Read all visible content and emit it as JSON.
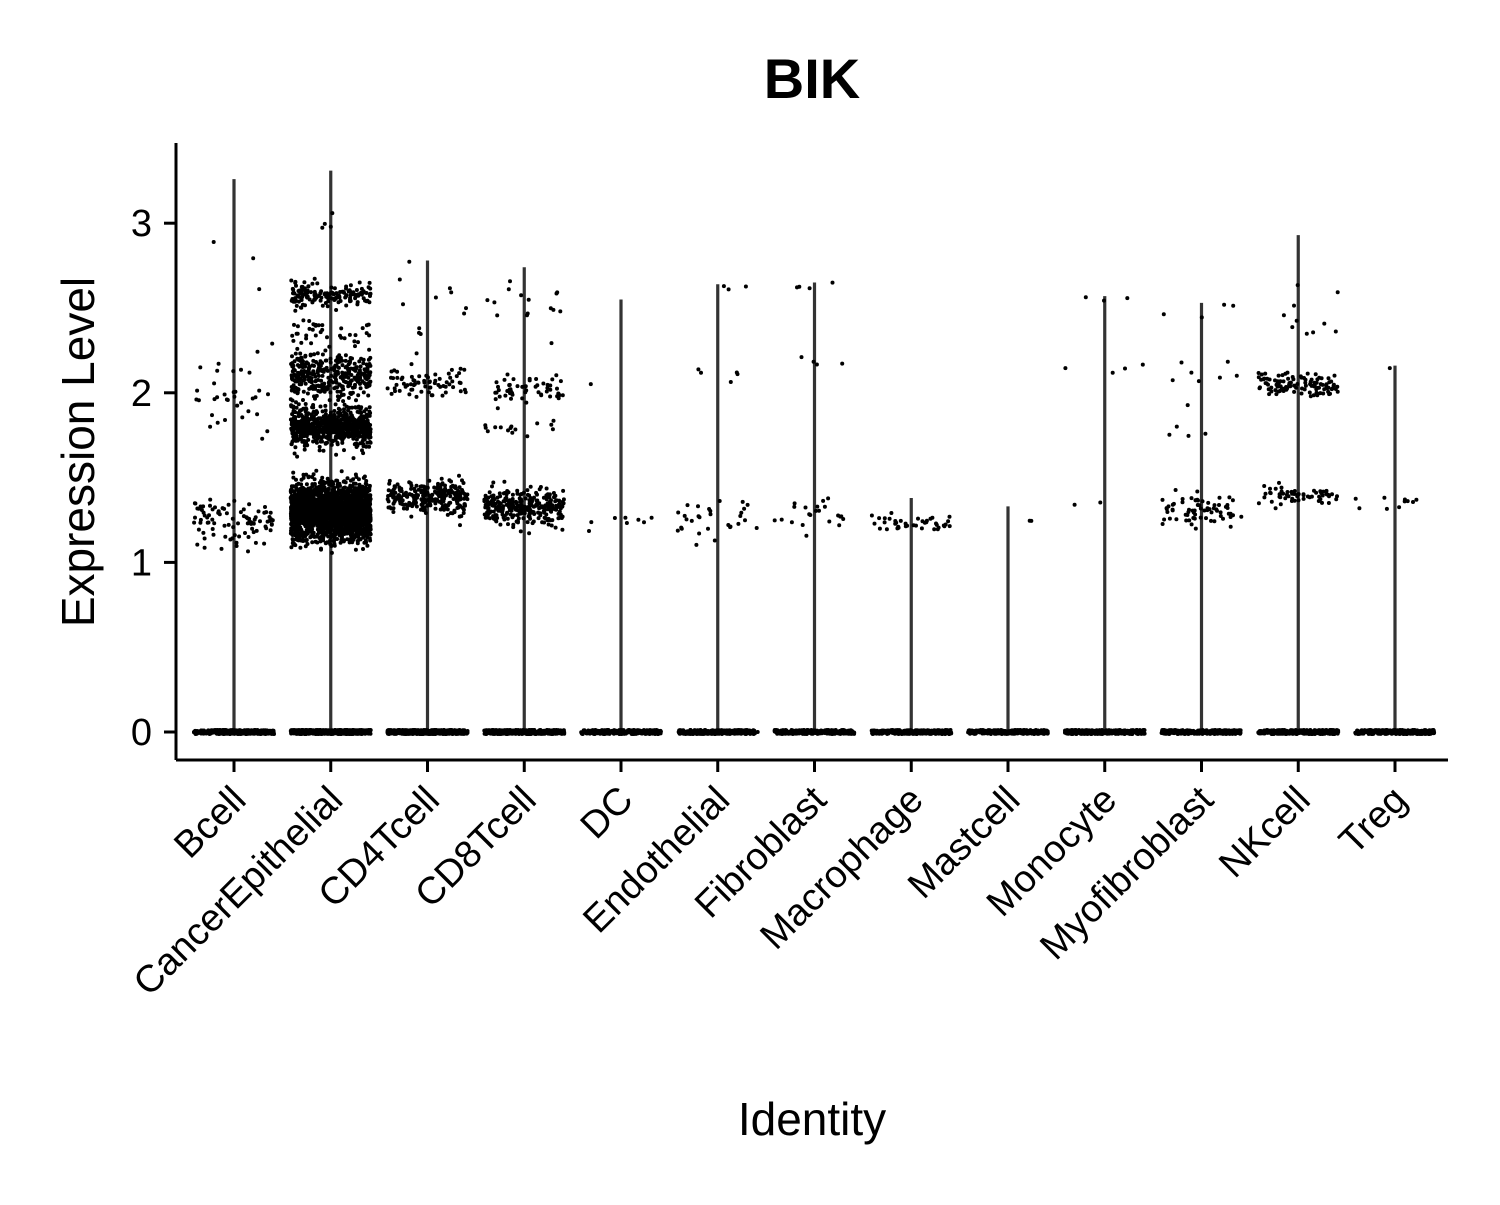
{
  "chart_data": {
    "type": "scatter",
    "subtype": "violin-jitter",
    "title": "BIK",
    "xlabel": "Identity",
    "ylabel": "Expression Level",
    "ylim": [
      -0.17,
      3.48
    ],
    "yticks": [
      0,
      1,
      2,
      3
    ],
    "grid": false,
    "legend": "none",
    "colors": {
      "points": "#000000",
      "violin": "#333333",
      "axis": "#000000"
    },
    "categories": [
      "Bcell",
      "CancerEpithelial",
      "CD4Tcell",
      "CD8Tcell",
      "DC",
      "Endothelial",
      "Fibroblast",
      "Macrophage",
      "Mastcell",
      "Monocyte",
      "Myofibroblast",
      "NKcell",
      "Treg"
    ],
    "max_values": [
      3.26,
      3.31,
      2.78,
      2.74,
      2.55,
      2.64,
      2.65,
      1.38,
      1.33,
      2.57,
      2.53,
      2.93,
      2.16
    ],
    "clusters": [
      [
        {
          "y": 0,
          "n": 400
        },
        {
          "y": 1.25,
          "n": 90,
          "spread": 0.12
        },
        {
          "y": 2.0,
          "n": 35,
          "spread": 0.2
        },
        {
          "y": 2.8,
          "n": 3,
          "spread": 0.3
        }
      ],
      [
        {
          "y": 0,
          "n": 600
        },
        {
          "y": 1.3,
          "n": 2200,
          "spread": 0.15
        },
        {
          "y": 1.8,
          "n": 700,
          "spread": 0.1
        },
        {
          "y": 2.1,
          "n": 350,
          "spread": 0.12
        },
        {
          "y": 2.58,
          "n": 160,
          "spread": 0.07
        },
        {
          "y": 2.35,
          "n": 40,
          "spread": 0.1
        },
        {
          "y": 3.0,
          "n": 4,
          "spread": 0.15
        }
      ],
      [
        {
          "y": 0,
          "n": 500
        },
        {
          "y": 1.38,
          "n": 260,
          "spread": 0.09
        },
        {
          "y": 2.05,
          "n": 70,
          "spread": 0.08
        },
        {
          "y": 2.45,
          "n": 12,
          "spread": 0.25
        }
      ],
      [
        {
          "y": 0,
          "n": 500
        },
        {
          "y": 1.33,
          "n": 300,
          "spread": 0.1
        },
        {
          "y": 2.02,
          "n": 55,
          "spread": 0.08
        },
        {
          "y": 1.8,
          "n": 15,
          "spread": 0.05
        },
        {
          "y": 2.5,
          "n": 15,
          "spread": 0.2
        }
      ],
      [
        {
          "y": 0,
          "n": 300
        },
        {
          "y": 1.25,
          "n": 8,
          "spread": 0.05
        },
        {
          "y": 2.06,
          "n": 1,
          "spread": 0.02
        }
      ],
      [
        {
          "y": 0,
          "n": 300
        },
        {
          "y": 1.25,
          "n": 30,
          "spread": 0.1
        },
        {
          "y": 2.1,
          "n": 5,
          "spread": 0.1
        },
        {
          "y": 2.63,
          "n": 3,
          "spread": 0.02
        }
      ],
      [
        {
          "y": 0,
          "n": 300
        },
        {
          "y": 1.28,
          "n": 22,
          "spread": 0.08
        },
        {
          "y": 2.16,
          "n": 4,
          "spread": 0.05
        },
        {
          "y": 2.63,
          "n": 4,
          "spread": 0.03
        }
      ],
      [
        {
          "y": 0,
          "n": 300
        },
        {
          "y": 1.23,
          "n": 40,
          "spread": 0.05
        }
      ],
      [
        {
          "y": 0,
          "n": 300
        },
        {
          "y": 1.25,
          "n": 2,
          "spread": 0.05
        }
      ],
      [
        {
          "y": 0,
          "n": 300
        },
        {
          "y": 2.15,
          "n": 4,
          "spread": 0.05
        },
        {
          "y": 2.55,
          "n": 3,
          "spread": 0.03
        },
        {
          "y": 1.35,
          "n": 2,
          "spread": 0.08
        }
      ],
      [
        {
          "y": 0,
          "n": 300
        },
        {
          "y": 1.3,
          "n": 70,
          "spread": 0.1
        },
        {
          "y": 2.1,
          "n": 8,
          "spread": 0.1
        },
        {
          "y": 1.75,
          "n": 4,
          "spread": 0.05
        },
        {
          "y": 2.4,
          "n": 4,
          "spread": 0.15
        }
      ],
      [
        {
          "y": 0,
          "n": 300
        },
        {
          "y": 2.05,
          "n": 110,
          "spread": 0.06
        },
        {
          "y": 1.4,
          "n": 60,
          "spread": 0.05
        },
        {
          "y": 2.45,
          "n": 10,
          "spread": 0.2
        }
      ],
      [
        {
          "y": 0,
          "n": 300
        },
        {
          "y": 1.35,
          "n": 10,
          "spread": 0.07
        },
        {
          "y": 2.16,
          "n": 1,
          "spread": 0.02
        }
      ]
    ]
  }
}
